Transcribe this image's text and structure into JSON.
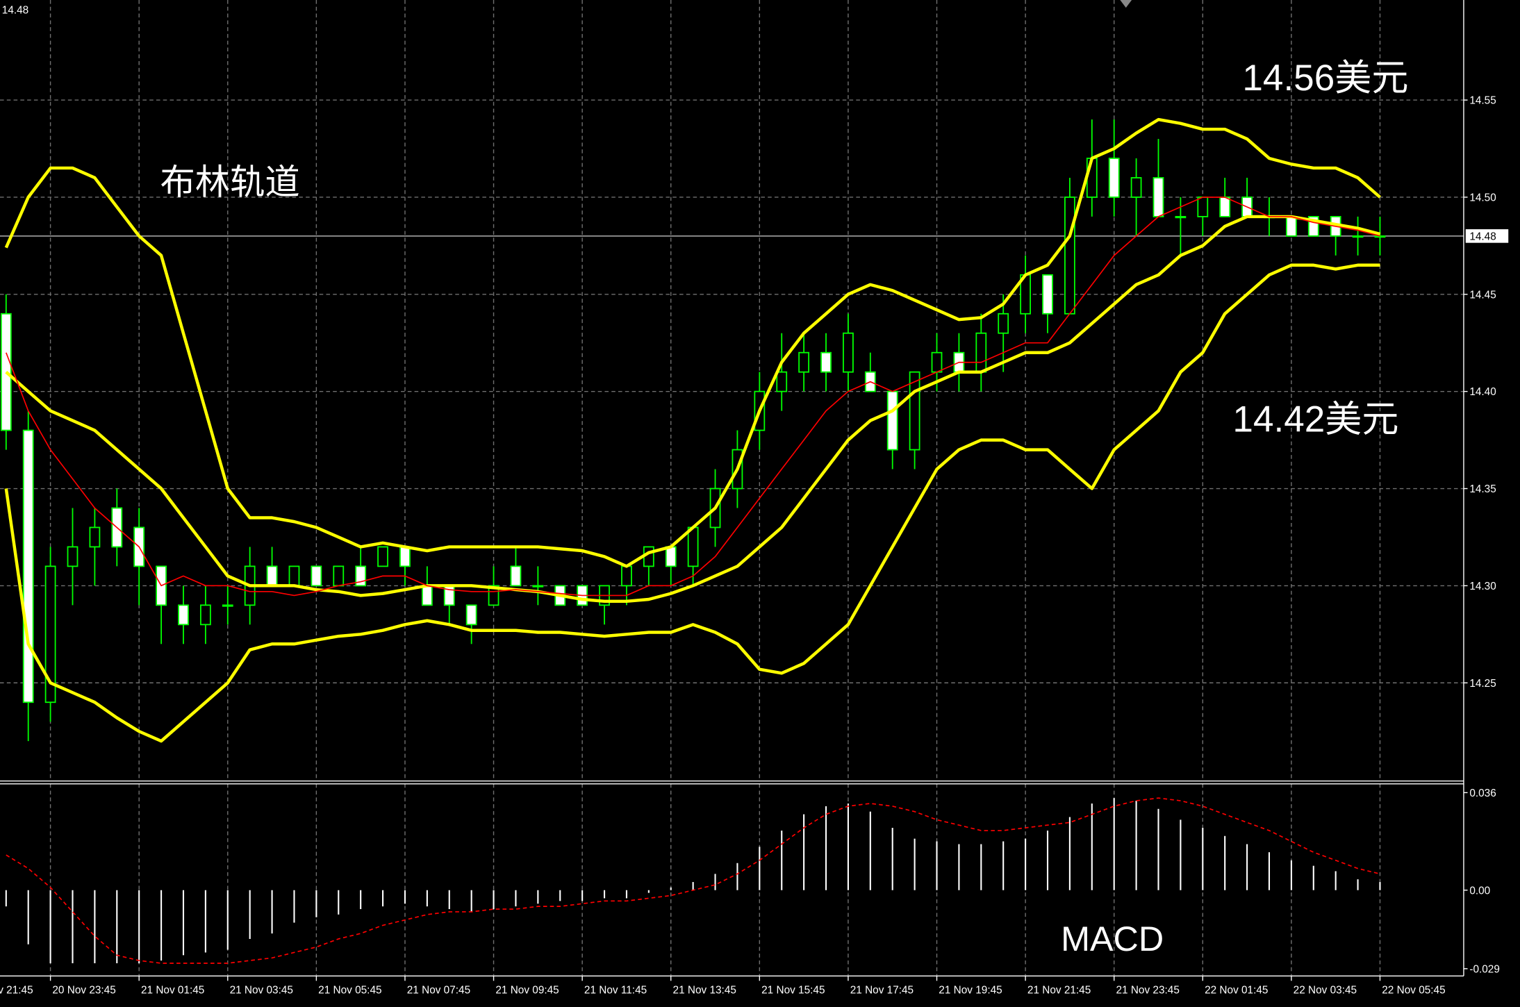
{
  "chart_data": [
    {
      "type": "candlestick",
      "color": "#00ff00",
      "open": [
        14.44,
        14.38,
        14.24,
        14.31,
        14.32,
        14.34,
        14.33,
        14.31,
        14.29,
        14.28,
        14.29,
        14.29,
        14.31,
        14.3,
        14.31,
        14.3,
        14.31,
        14.31,
        14.32,
        14.3,
        14.3,
        14.29,
        14.29,
        14.31,
        14.3,
        14.3,
        14.3,
        14.29,
        14.3,
        14.31,
        14.32,
        14.31,
        14.33,
        14.35,
        14.38,
        14.4,
        14.41,
        14.42,
        14.41,
        14.41,
        14.4,
        14.37,
        14.41,
        14.42,
        14.41,
        14.43,
        14.44,
        14.46,
        14.44,
        14.5,
        14.52,
        14.5,
        14.51,
        14.49,
        14.49,
        14.5,
        14.5,
        14.49,
        14.49,
        14.49,
        14.49,
        14.48,
        14.48
      ],
      "high": [
        14.45,
        14.39,
        14.32,
        14.34,
        14.34,
        14.35,
        14.34,
        14.31,
        14.3,
        14.3,
        14.3,
        14.32,
        14.32,
        14.31,
        14.31,
        14.31,
        14.32,
        14.32,
        14.32,
        14.31,
        14.3,
        14.29,
        14.31,
        14.32,
        14.31,
        14.3,
        14.3,
        14.3,
        14.31,
        14.32,
        14.32,
        14.33,
        14.36,
        14.38,
        14.41,
        14.43,
        14.43,
        14.43,
        14.44,
        14.42,
        14.4,
        14.41,
        14.43,
        14.43,
        14.44,
        14.45,
        14.47,
        14.46,
        14.51,
        14.54,
        14.54,
        14.52,
        14.53,
        14.5,
        14.5,
        14.51,
        14.51,
        14.5,
        14.49,
        14.49,
        14.49,
        14.49,
        14.49
      ],
      "low": [
        14.37,
        14.22,
        14.23,
        14.29,
        14.3,
        14.31,
        14.29,
        14.27,
        14.27,
        14.27,
        14.28,
        14.28,
        14.3,
        14.3,
        14.3,
        14.3,
        14.3,
        14.31,
        14.3,
        14.29,
        14.28,
        14.27,
        14.29,
        14.3,
        14.29,
        14.29,
        14.29,
        14.28,
        14.29,
        14.3,
        14.3,
        14.3,
        14.32,
        14.34,
        14.37,
        14.39,
        14.4,
        14.4,
        14.4,
        14.4,
        14.36,
        14.36,
        14.4,
        14.4,
        14.4,
        14.41,
        14.43,
        14.43,
        14.44,
        14.49,
        14.49,
        14.48,
        14.49,
        14.47,
        14.48,
        14.49,
        14.49,
        14.48,
        14.48,
        14.48,
        14.47,
        14.47,
        14.47
      ],
      "close": [
        14.38,
        14.24,
        14.31,
        14.32,
        14.33,
        14.32,
        14.31,
        14.29,
        14.28,
        14.29,
        14.29,
        14.31,
        14.3,
        14.31,
        14.3,
        14.31,
        14.3,
        14.32,
        14.31,
        14.29,
        14.29,
        14.28,
        14.3,
        14.3,
        14.3,
        14.29,
        14.29,
        14.3,
        14.31,
        14.32,
        14.31,
        14.33,
        14.35,
        14.37,
        14.4,
        14.41,
        14.42,
        14.41,
        14.43,
        14.4,
        14.37,
        14.41,
        14.42,
        14.41,
        14.43,
        14.44,
        14.46,
        14.44,
        14.5,
        14.52,
        14.5,
        14.51,
        14.49,
        14.49,
        14.5,
        14.49,
        14.49,
        14.49,
        14.48,
        14.48,
        14.48,
        14.48,
        14.48
      ],
      "series": [
        {
          "color": "#ffff00",
          "values": [
            14.474,
            14.5,
            14.515,
            14.515,
            14.51,
            14.495,
            14.48,
            14.47,
            14.43,
            14.39,
            14.35,
            14.335,
            14.335,
            14.333,
            14.33,
            14.325,
            14.32,
            14.322,
            14.32,
            14.318,
            14.32,
            14.32,
            14.32,
            14.32,
            14.32,
            14.319,
            14.318,
            14.315,
            14.31,
            14.317,
            14.32,
            14.33,
            14.34,
            14.36,
            14.39,
            14.415,
            14.43,
            14.44,
            14.45,
            14.455,
            14.452,
            14.447,
            14.442,
            14.437,
            14.438,
            14.445,
            14.46,
            14.465,
            14.48,
            14.52,
            14.525,
            14.533,
            14.54,
            14.538,
            14.535,
            14.535,
            14.53,
            14.52,
            14.517,
            14.515,
            14.515,
            14.51,
            14.5
          ]
        },
        {
          "color": "#ffff00",
          "values": [
            14.41,
            14.4,
            14.39,
            14.385,
            14.38,
            14.37,
            14.36,
            14.35,
            14.335,
            14.32,
            14.305,
            14.3,
            14.3,
            14.3,
            14.298,
            14.297,
            14.295,
            14.296,
            14.298,
            14.3,
            14.3,
            14.3,
            14.299,
            14.298,
            14.297,
            14.295,
            14.293,
            14.292,
            14.292,
            14.293,
            14.296,
            14.3,
            14.305,
            14.31,
            14.32,
            14.33,
            14.345,
            14.36,
            14.375,
            14.385,
            14.39,
            14.4,
            14.405,
            14.41,
            14.41,
            14.415,
            14.42,
            14.42,
            14.425,
            14.435,
            14.445,
            14.455,
            14.46,
            14.47,
            14.475,
            14.485,
            14.49,
            14.49,
            14.49,
            14.488,
            14.486,
            14.484,
            14.481
          ]
        },
        {
          "color": "#ffff00",
          "values": [
            14.35,
            14.27,
            14.25,
            14.245,
            14.24,
            14.232,
            14.225,
            14.22,
            14.23,
            14.24,
            14.25,
            14.267,
            14.27,
            14.27,
            14.272,
            14.274,
            14.275,
            14.277,
            14.28,
            14.282,
            14.28,
            14.277,
            14.277,
            14.277,
            14.276,
            14.276,
            14.275,
            14.274,
            14.275,
            14.276,
            14.276,
            14.28,
            14.276,
            14.27,
            14.257,
            14.255,
            14.26,
            14.27,
            14.28,
            14.3,
            14.32,
            14.34,
            14.36,
            14.37,
            14.375,
            14.375,
            14.37,
            14.37,
            14.36,
            14.35,
            14.37,
            14.38,
            14.39,
            14.41,
            14.42,
            14.44,
            14.45,
            14.46,
            14.465,
            14.465,
            14.463,
            14.465,
            14.465
          ]
        },
        {
          "color": "#ff0000",
          "values": [
            14.42,
            14.39,
            14.37,
            14.355,
            14.34,
            14.33,
            14.32,
            14.3,
            14.305,
            14.3,
            14.3,
            14.297,
            14.297,
            14.295,
            14.297,
            14.3,
            14.302,
            14.305,
            14.305,
            14.3,
            14.298,
            14.297,
            14.297,
            14.298,
            14.297,
            14.296,
            14.295,
            14.295,
            14.295,
            14.3,
            14.3,
            14.305,
            14.315,
            14.33,
            14.345,
            14.36,
            14.375,
            14.39,
            14.4,
            14.405,
            14.4,
            14.405,
            14.41,
            14.415,
            14.415,
            14.42,
            14.425,
            14.425,
            14.44,
            14.455,
            14.47,
            14.48,
            14.49,
            14.495,
            14.5,
            14.5,
            14.495,
            14.49,
            14.49,
            14.487,
            14.485,
            14.483,
            14.48
          ]
        }
      ],
      "ylim": [
        14.1995,
        14.6015
      ],
      "yticks": [
        14.25,
        {
          "value": 14.3,
          "label": "14.30"
        },
        14.35,
        {
          "value": 14.4,
          "label": "14.40"
        },
        14.45,
        {
          "value": 14.5,
          "label": "14.50"
        },
        14.55
      ],
      "grid": true,
      "current_price": {
        "value": 14.48,
        "label": "14.48"
      },
      "annotations": [
        "布林轨道",
        "14.56美元",
        "14.42美元"
      ]
    },
    {
      "type": "macd",
      "annotation": "MACD",
      "categories": [
        null,
        null,
        "20 Nov 23:45",
        null,
        null,
        null,
        "21 Nov 01:45",
        null,
        null,
        null,
        "21 Nov 03:45",
        null,
        null,
        null,
        "21 Nov 05:45",
        null,
        null,
        null,
        "21 Nov 07:45",
        null,
        null,
        null,
        "21 Nov 09:45",
        null,
        null,
        null,
        "21 Nov 11:45",
        null,
        null,
        null,
        "21 Nov 13:45",
        null,
        null,
        null,
        "21 Nov 15:45",
        null,
        null,
        null,
        "21 Nov 17:45",
        null,
        null,
        null,
        "21 Nov 19:45",
        null,
        null,
        null,
        "21 Nov 21:45",
        null,
        null,
        null,
        "21 Nov 23:45",
        null,
        null,
        null,
        "22 Nov 01:45",
        null,
        null,
        null,
        "22 Nov 03:45",
        null,
        null,
        null,
        "22 Nov 05:45"
      ],
      "clipped_first_label": "v 21:45",
      "histogram": {
        "color": "#ffffff",
        "values": [
          -0.006,
          -0.02,
          -0.027,
          -0.027,
          -0.027,
          -0.027,
          -0.027,
          -0.026,
          -0.024,
          -0.023,
          -0.022,
          -0.018,
          -0.016,
          -0.012,
          -0.01,
          -0.009,
          -0.007,
          -0.006,
          -0.005,
          -0.006,
          -0.007,
          -0.008,
          -0.007,
          -0.006,
          -0.005,
          -0.004,
          -0.004,
          -0.003,
          -0.003,
          -0.001,
          0.001,
          0.003,
          0.006,
          0.01,
          0.016,
          0.022,
          0.028,
          0.031,
          0.032,
          0.029,
          0.023,
          0.019,
          0.018,
          0.017,
          0.017,
          0.018,
          0.019,
          0.022,
          0.027,
          0.032,
          0.034,
          0.033,
          0.03,
          0.026,
          0.023,
          0.02,
          0.017,
          0.014,
          0.011,
          0.009,
          0.007,
          0.004,
          0.003
        ]
      },
      "signal": {
        "color": "#ff0000",
        "values": [
          0.013,
          0.008,
          0.001,
          -0.008,
          -0.017,
          -0.024,
          -0.026,
          -0.027,
          -0.027,
          -0.027,
          -0.027,
          -0.026,
          -0.025,
          -0.023,
          -0.021,
          -0.018,
          -0.016,
          -0.013,
          -0.011,
          -0.009,
          -0.008,
          -0.008,
          -0.007,
          -0.007,
          -0.006,
          -0.006,
          -0.005,
          -0.004,
          -0.004,
          -0.003,
          -0.002,
          0.0,
          0.002,
          0.006,
          0.011,
          0.017,
          0.023,
          0.028,
          0.031,
          0.032,
          0.031,
          0.029,
          0.026,
          0.024,
          0.022,
          0.022,
          0.023,
          0.024,
          0.025,
          0.028,
          0.031,
          0.033,
          0.034,
          0.033,
          0.031,
          0.028,
          0.025,
          0.022,
          0.018,
          0.014,
          0.011,
          0.008,
          0.006
        ]
      },
      "ylim": [
        -0.03168,
        0.03924
      ],
      "yticks": [
        -0.029,
        {
          "value": 0,
          "label": "0.00"
        },
        0.036
      ]
    }
  ]
}
